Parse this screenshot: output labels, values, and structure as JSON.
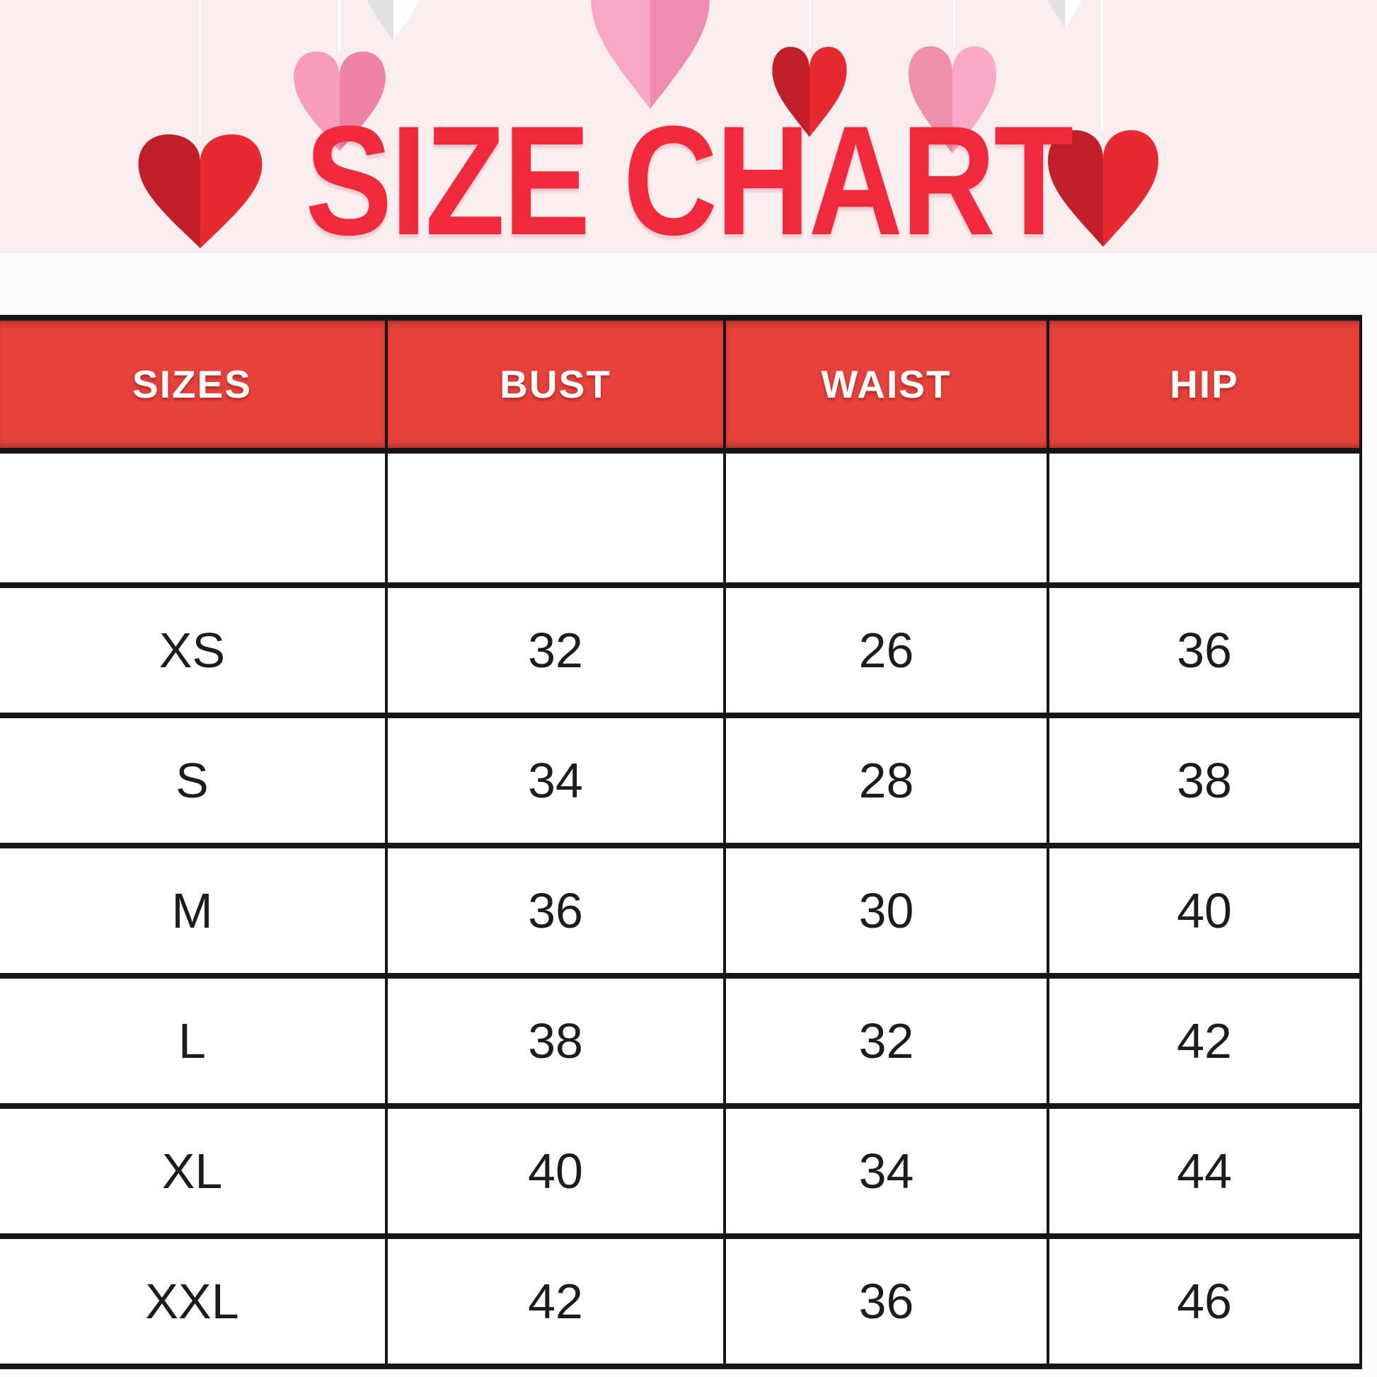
{
  "title": "SIZE CHART",
  "chart_data": {
    "type": "table",
    "title": "SIZE CHART",
    "columns": [
      "SIZES",
      "BUST",
      "WAIST",
      "HIP"
    ],
    "spacer_row": [
      "",
      "",
      "",
      ""
    ],
    "rows": [
      [
        "XS",
        "32",
        "26",
        "36"
      ],
      [
        "S",
        "34",
        "28",
        "38"
      ],
      [
        "M",
        "36",
        "30",
        "40"
      ],
      [
        "L",
        "38",
        "32",
        "42"
      ],
      [
        "XL",
        "40",
        "34",
        "44"
      ],
      [
        "XXL",
        "42",
        "36",
        "46"
      ]
    ]
  },
  "decor": {
    "hanging_hearts": [
      "white",
      "pink",
      "pink-large",
      "red",
      "pink",
      "white"
    ],
    "title_hearts": [
      "red",
      "red"
    ]
  },
  "colors": {
    "title_red": "#ee2a3b",
    "header_red": "#e6413a",
    "header_text": "#ffffff",
    "bg_pink": "#faedf0",
    "band_white": "#fbfbfb",
    "cell_white": "#ffffff",
    "cell_text": "#1c1c1c",
    "border_black": "#161616",
    "string_white": "#ffffff",
    "heart_red_left": "#c1202a",
    "heart_red_right": "#e52b31",
    "heart_pink_a_left": "#f79cba",
    "heart_pink_a_right": "#ef83a7",
    "heart_pink_b_left": "#f7a6c3",
    "heart_pink_b_right": "#ef8db0",
    "heart_pink_c_left": "#ee8fae",
    "heart_pink_c_right": "#f8a9c6",
    "heart_white_left": "#e2e2e2",
    "heart_white_right": "#fdfdfd"
  }
}
